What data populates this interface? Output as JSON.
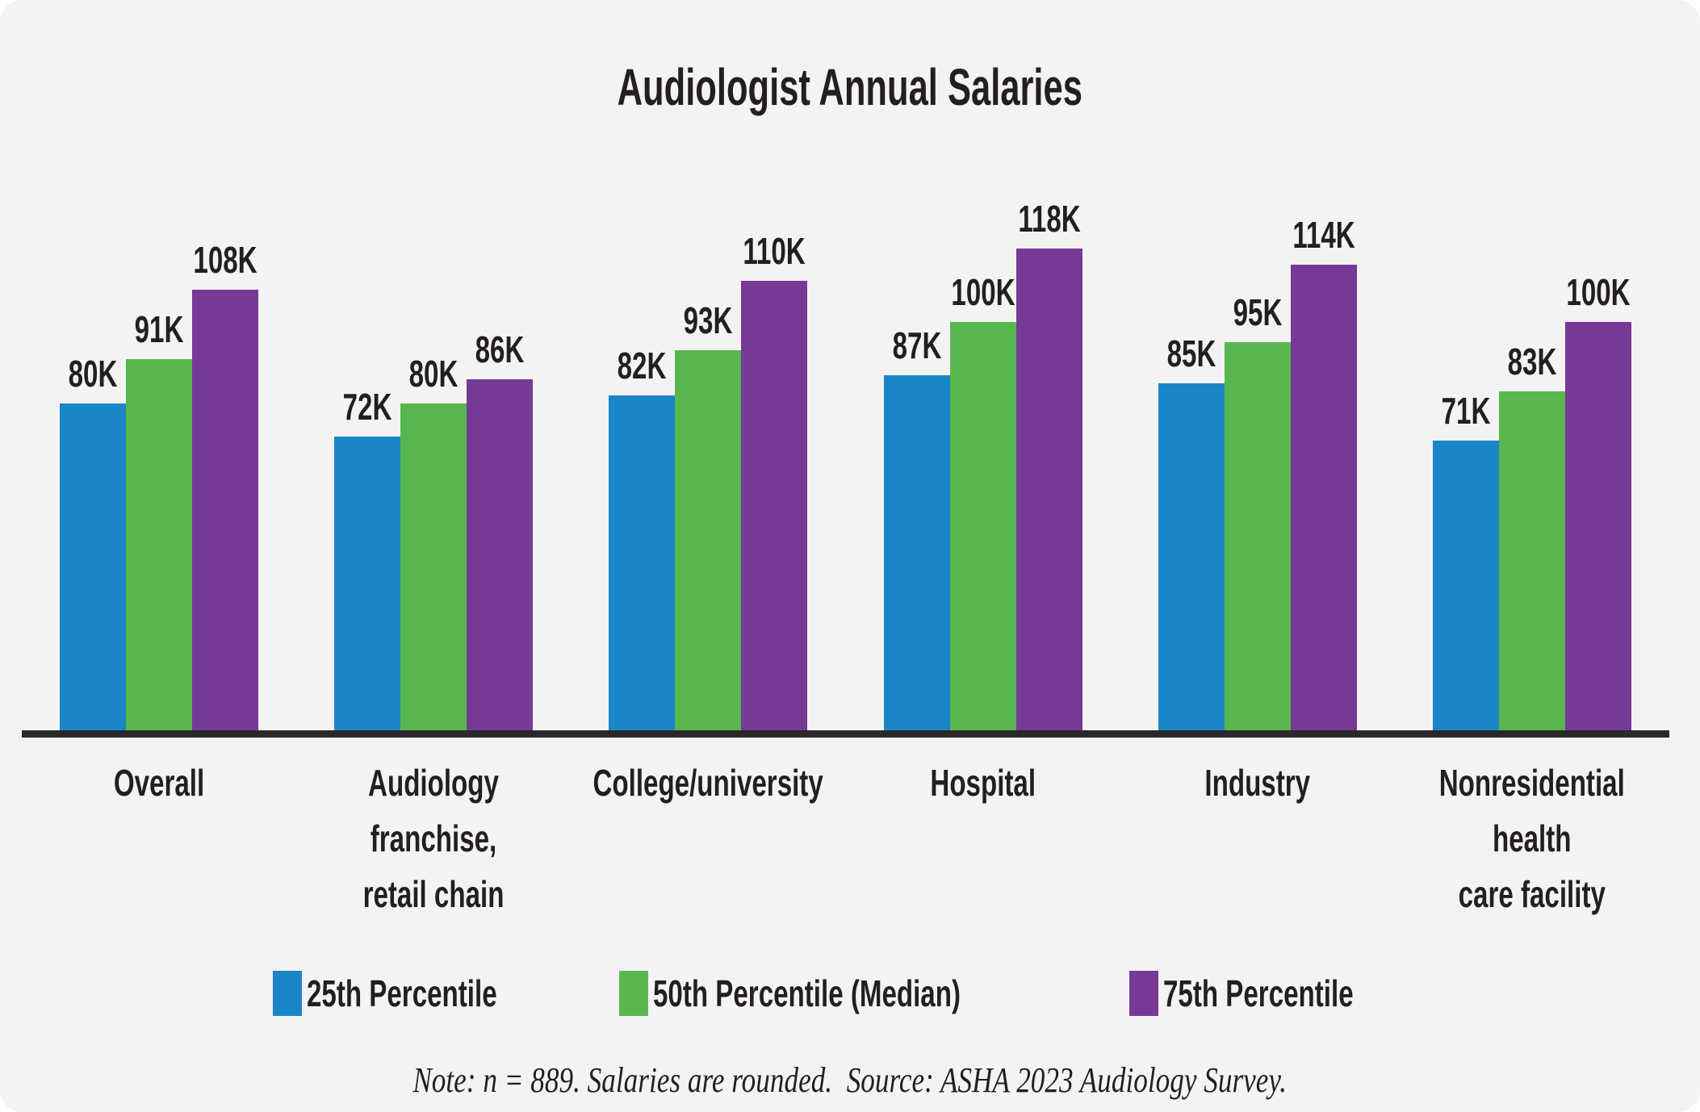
{
  "title": "Audiologist Annual Salaries",
  "chart_data": {
    "type": "bar",
    "title": "Audiologist Annual Salaries",
    "categories": [
      "Overall",
      "Audiology franchise,\nretail chain",
      "College/university",
      "Hospital",
      "Industry",
      "Nonresidential health\ncare facility"
    ],
    "series": [
      {
        "name": "25th Percentile",
        "color": "#1B86C7",
        "values": [
          80,
          72,
          82,
          87,
          85,
          71
        ]
      },
      {
        "name": "50th Percentile (Median)",
        "color": "#57B74E",
        "values": [
          91,
          80,
          93,
          100,
          95,
          83
        ]
      },
      {
        "name": "75th Percentile",
        "color": "#763996",
        "values": [
          108,
          86,
          110,
          118,
          114,
          100
        ]
      }
    ],
    "value_label_format": "{v}K",
    "ylim": [
      0,
      120
    ],
    "grid": false,
    "legend_position": "bottom",
    "axis_color": "#2B2829"
  },
  "note": "Note: n = 889. Salaries are rounded.  Source: ASHA 2023 Audiology Survey.",
  "colors": {
    "background": "#F4F3F3",
    "text": "#231F20"
  }
}
